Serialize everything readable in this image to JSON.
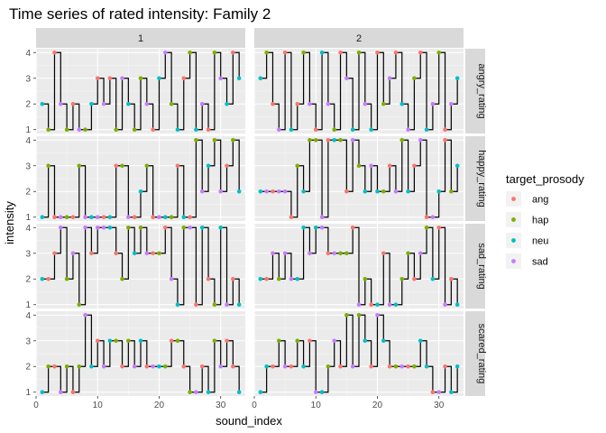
{
  "chart_data": {
    "type": "line",
    "title": "Time series of rated intensity: Family 2",
    "xlabel": "sound_index",
    "ylabel": "intensity",
    "xlim": [
      0,
      34
    ],
    "ylim": [
      0.85,
      4.15
    ],
    "x_ticks": [
      0,
      10,
      20,
      30
    ],
    "x_tick_labels": [
      "0",
      "10",
      "20",
      "30"
    ],
    "y_ticks": [
      1,
      2,
      3,
      4
    ],
    "y_tick_labels": [
      "1",
      "2",
      "3",
      "4"
    ],
    "column_facets": [
      "1",
      "2"
    ],
    "row_facets": [
      "angry_rating",
      "happy_rating",
      "sad_rating",
      "scared_rating"
    ],
    "legend": {
      "title": "target_prosody",
      "position": "right",
      "entries": [
        {
          "label": "ang",
          "color": "#F8766D"
        },
        {
          "label": "hap",
          "color": "#7CAE00"
        },
        {
          "label": "neu",
          "color": "#00BFC4"
        },
        {
          "label": "sad",
          "color": "#C77CFF"
        }
      ]
    },
    "step_line_color": "#000000",
    "panels": [
      {
        "column": "1",
        "row": "angry_rating",
        "x": [
          1,
          2,
          3,
          4,
          5,
          6,
          7,
          8,
          9,
          10,
          11,
          12,
          13,
          14,
          15,
          16,
          17,
          18,
          19,
          20,
          21,
          22,
          23,
          24,
          25,
          26,
          27,
          28,
          29,
          30,
          31,
          32,
          33
        ],
        "y": [
          2,
          1,
          4,
          2,
          1,
          2,
          1,
          1,
          2,
          3,
          2,
          3,
          1,
          3,
          2,
          1,
          3,
          2,
          1,
          3,
          4,
          2,
          1,
          3,
          4,
          1,
          2,
          1,
          4,
          3,
          2,
          4,
          3
        ],
        "prosody": [
          "neu",
          "hap",
          "ang",
          "sad",
          "hap",
          "ang",
          "sad",
          "hap",
          "neu",
          "ang",
          "sad",
          "ang",
          "hap",
          "sad",
          "neu",
          "hap",
          "hap",
          "sad",
          "ang",
          "neu",
          "sad",
          "hap",
          "neu",
          "ang",
          "hap",
          "neu",
          "sad",
          "ang",
          "hap",
          "sad",
          "neu",
          "ang",
          "neu"
        ]
      },
      {
        "column": "2",
        "row": "angry_rating",
        "x": [
          1,
          2,
          3,
          4,
          5,
          6,
          7,
          8,
          9,
          10,
          11,
          12,
          13,
          14,
          15,
          16,
          17,
          18,
          19,
          20,
          21,
          22,
          23,
          24,
          25,
          26,
          27,
          28,
          29,
          30,
          31,
          32,
          33
        ],
        "y": [
          3,
          4,
          2,
          1,
          4,
          1,
          2,
          4,
          2,
          1,
          4,
          2,
          1,
          4,
          3,
          1,
          4,
          2,
          1,
          4,
          2,
          3,
          4,
          2,
          1,
          3,
          4,
          1,
          2,
          4,
          1,
          2,
          3
        ],
        "prosody": [
          "neu",
          "hap",
          "ang",
          "sad",
          "ang",
          "neu",
          "ang",
          "hap",
          "sad",
          "ang",
          "neu",
          "sad",
          "hap",
          "ang",
          "sad",
          "neu",
          "hap",
          "sad",
          "neu",
          "ang",
          "hap",
          "sad",
          "ang",
          "neu",
          "sad",
          "hap",
          "ang",
          "neu",
          "sad",
          "hap",
          "ang",
          "sad",
          "neu"
        ]
      },
      {
        "column": "1",
        "row": "happy_rating",
        "x": [
          1,
          2,
          3,
          4,
          5,
          6,
          7,
          8,
          9,
          10,
          11,
          12,
          13,
          14,
          15,
          16,
          17,
          18,
          19,
          20,
          21,
          22,
          23,
          24,
          25,
          26,
          27,
          28,
          29,
          30,
          31,
          32,
          33
        ],
        "y": [
          1,
          3,
          1,
          1,
          1,
          1,
          3,
          1,
          1,
          1,
          1,
          1,
          3,
          3,
          1,
          1,
          2,
          3,
          1,
          1,
          1,
          1,
          3,
          1,
          1,
          4,
          2,
          3,
          4,
          2,
          3,
          4,
          2
        ],
        "prosody": [
          "neu",
          "hap",
          "ang",
          "sad",
          "hap",
          "ang",
          "hap",
          "sad",
          "neu",
          "sad",
          "ang",
          "neu",
          "ang",
          "hap",
          "sad",
          "ang",
          "neu",
          "hap",
          "ang",
          "sad",
          "neu",
          "hap",
          "ang",
          "neu",
          "ang",
          "hap",
          "sad",
          "neu",
          "hap",
          "sad",
          "ang",
          "hap",
          "neu"
        ]
      },
      {
        "column": "2",
        "row": "happy_rating",
        "x": [
          1,
          2,
          3,
          4,
          5,
          6,
          7,
          8,
          9,
          10,
          11,
          12,
          13,
          14,
          15,
          16,
          17,
          18,
          19,
          20,
          21,
          22,
          23,
          24,
          25,
          26,
          27,
          28,
          29,
          30,
          31,
          32,
          33
        ],
        "y": [
          2,
          2,
          2,
          2,
          2,
          1,
          3,
          2,
          4,
          4,
          1,
          4,
          4,
          4,
          2,
          4,
          3,
          2,
          3,
          2,
          2,
          3,
          2,
          4,
          2,
          3,
          4,
          1,
          1,
          2,
          4,
          2,
          3
        ],
        "prosody": [
          "neu",
          "sad",
          "ang",
          "sad",
          "sad",
          "ang",
          "hap",
          "neu",
          "hap",
          "hap",
          "sad",
          "ang",
          "neu",
          "hap",
          "ang",
          "sad",
          "hap",
          "neu",
          "sad",
          "neu",
          "hap",
          "ang",
          "sad",
          "hap",
          "neu",
          "ang",
          "sad",
          "ang",
          "sad",
          "neu",
          "ang",
          "hap",
          "neu"
        ]
      },
      {
        "column": "1",
        "row": "sad_rating",
        "x": [
          1,
          2,
          3,
          4,
          5,
          6,
          7,
          8,
          9,
          10,
          11,
          12,
          13,
          14,
          15,
          16,
          17,
          18,
          19,
          20,
          21,
          22,
          23,
          24,
          25,
          26,
          27,
          28,
          29,
          30,
          31,
          32,
          33
        ],
        "y": [
          2,
          2,
          3,
          4,
          2,
          3,
          1,
          4,
          3,
          4,
          4,
          4,
          3,
          2,
          4,
          3,
          4,
          3,
          3,
          3,
          4,
          2,
          1,
          4,
          4,
          1,
          4,
          2,
          1,
          4,
          1,
          2,
          1
        ],
        "prosody": [
          "neu",
          "ang",
          "ang",
          "sad",
          "hap",
          "sad",
          "hap",
          "sad",
          "ang",
          "sad",
          "sad",
          "neu",
          "ang",
          "hap",
          "hap",
          "neu",
          "hap",
          "sad",
          "ang",
          "hap",
          "ang",
          "sad",
          "neu",
          "hap",
          "sad",
          "ang",
          "neu",
          "ang",
          "hap",
          "neu",
          "sad",
          "ang",
          "neu"
        ]
      },
      {
        "column": "2",
        "row": "sad_rating",
        "x": [
          1,
          2,
          3,
          4,
          5,
          6,
          7,
          8,
          9,
          10,
          11,
          12,
          13,
          14,
          15,
          16,
          17,
          18,
          19,
          20,
          21,
          22,
          23,
          24,
          25,
          26,
          27,
          28,
          29,
          30,
          31,
          32,
          33
        ],
        "y": [
          2,
          2,
          3,
          2,
          3,
          2,
          2,
          4,
          3,
          4,
          4,
          3,
          3,
          3,
          3,
          4,
          1,
          2,
          1,
          1,
          3,
          1,
          1,
          2,
          3,
          2,
          3,
          4,
          2,
          4,
          1,
          2,
          1
        ],
        "prosody": [
          "neu",
          "ang",
          "sad",
          "hap",
          "sad",
          "sad",
          "neu",
          "neu",
          "sad",
          "neu",
          "sad",
          "ang",
          "sad",
          "hap",
          "hap",
          "ang",
          "sad",
          "hap",
          "ang",
          "neu",
          "ang",
          "sad",
          "neu",
          "hap",
          "hap",
          "ang",
          "sad",
          "hap",
          "neu",
          "ang",
          "sad",
          "ang",
          "neu"
        ]
      },
      {
        "column": "1",
        "row": "scared_rating",
        "x": [
          1,
          2,
          3,
          4,
          5,
          6,
          7,
          8,
          9,
          10,
          11,
          12,
          13,
          14,
          15,
          16,
          17,
          18,
          19,
          20,
          21,
          22,
          23,
          24,
          25,
          26,
          27,
          28,
          29,
          30,
          31,
          32,
          33
        ],
        "y": [
          1,
          2,
          2,
          1,
          2,
          1,
          2,
          4,
          2,
          3,
          2,
          3,
          3,
          2,
          3,
          2,
          3,
          2,
          2,
          2,
          2,
          3,
          3,
          2,
          1,
          1,
          2,
          1,
          3,
          2,
          3,
          2,
          1
        ],
        "prosody": [
          "neu",
          "hap",
          "ang",
          "sad",
          "hap",
          "ang",
          "hap",
          "sad",
          "neu",
          "ang",
          "sad",
          "neu",
          "hap",
          "ang",
          "hap",
          "sad",
          "neu",
          "ang",
          "sad",
          "neu",
          "hap",
          "ang",
          "hap",
          "ang",
          "hap",
          "sad",
          "ang",
          "neu",
          "hap",
          "sad",
          "ang",
          "ang",
          "neu"
        ]
      },
      {
        "column": "2",
        "row": "scared_rating",
        "x": [
          1,
          2,
          3,
          4,
          5,
          6,
          7,
          8,
          9,
          10,
          11,
          12,
          13,
          14,
          15,
          16,
          17,
          18,
          19,
          20,
          21,
          22,
          23,
          24,
          25,
          26,
          27,
          28,
          29,
          30,
          31,
          32,
          33
        ],
        "y": [
          1,
          2,
          2,
          3,
          2,
          2,
          3,
          2,
          3,
          1,
          1,
          2,
          3,
          2,
          4,
          2,
          4,
          3,
          2,
          4,
          3,
          2,
          2,
          2,
          2,
          2,
          3,
          2,
          1,
          1,
          2,
          1,
          2
        ],
        "prosody": [
          "neu",
          "neu",
          "ang",
          "hap",
          "sad",
          "ang",
          "hap",
          "neu",
          "ang",
          "sad",
          "neu",
          "hap",
          "sad",
          "ang",
          "hap",
          "sad",
          "hap",
          "neu",
          "ang",
          "sad",
          "neu",
          "ang",
          "hap",
          "sad",
          "ang",
          "hap",
          "neu",
          "neu",
          "ang",
          "sad",
          "ang",
          "neu",
          "neu"
        ]
      }
    ]
  }
}
